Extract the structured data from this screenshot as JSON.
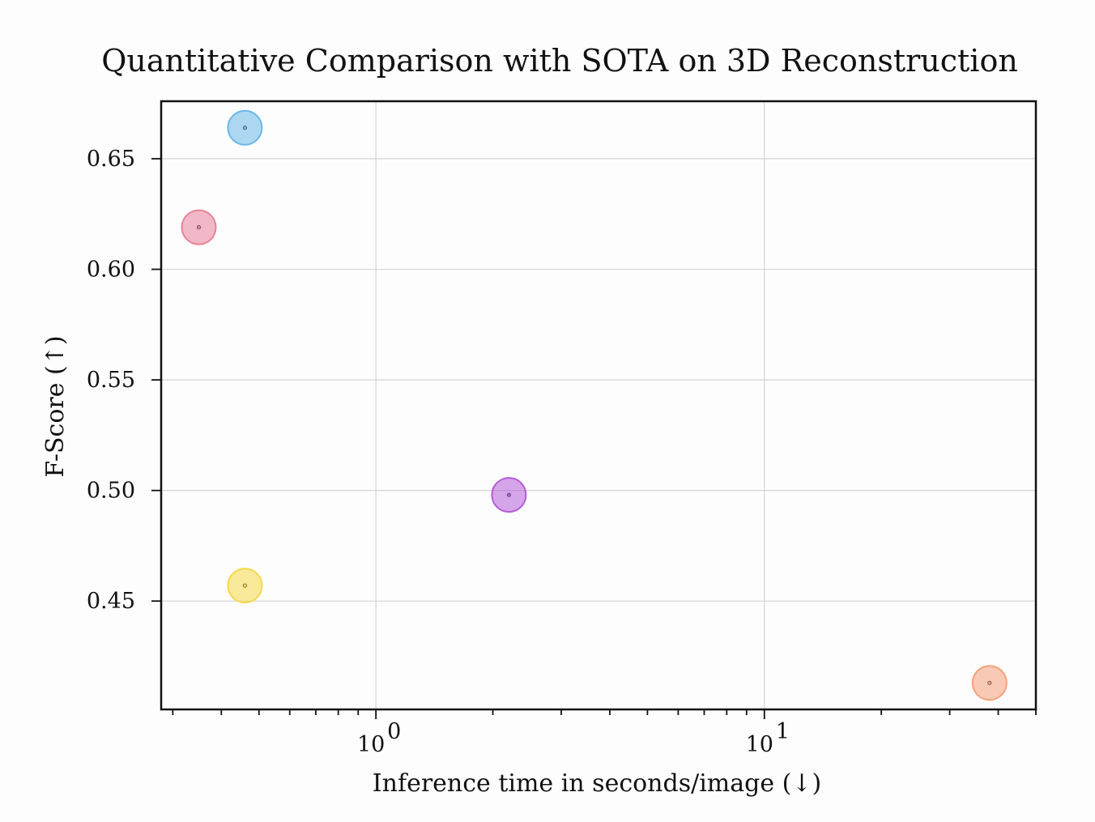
{
  "chart_data": {
    "type": "scatter",
    "title": "Quantitative Comparison with SOTA on 3D Reconstruction",
    "xlabel": "Inference time in seconds/image (↓)",
    "ylabel": "F-Score (↑)",
    "xscale": "log",
    "xlim": [
      0.28,
      50
    ],
    "ylim": [
      0.401,
      0.676
    ],
    "xticks": [
      1,
      10
    ],
    "xtick_labels": [
      {
        "base": "10",
        "exp": "0"
      },
      {
        "base": "10",
        "exp": "1"
      }
    ],
    "yticks": [
      0.45,
      0.5,
      0.55,
      0.6,
      0.65
    ],
    "ytick_labels": [
      "0.45",
      "0.50",
      "0.55",
      "0.60",
      "0.65"
    ],
    "grid": true,
    "legend": "none",
    "points": [
      {
        "x": 0.35,
        "y": 0.619,
        "color": "#e8829a"
      },
      {
        "x": 0.46,
        "y": 0.664,
        "color": "#6cb8e8"
      },
      {
        "x": 0.46,
        "y": 0.457,
        "color": "#f5d84a"
      },
      {
        "x": 2.2,
        "y": 0.498,
        "color": "#b45cd8"
      },
      {
        "x": 38,
        "y": 0.413,
        "color": "#f4a07a"
      }
    ]
  }
}
